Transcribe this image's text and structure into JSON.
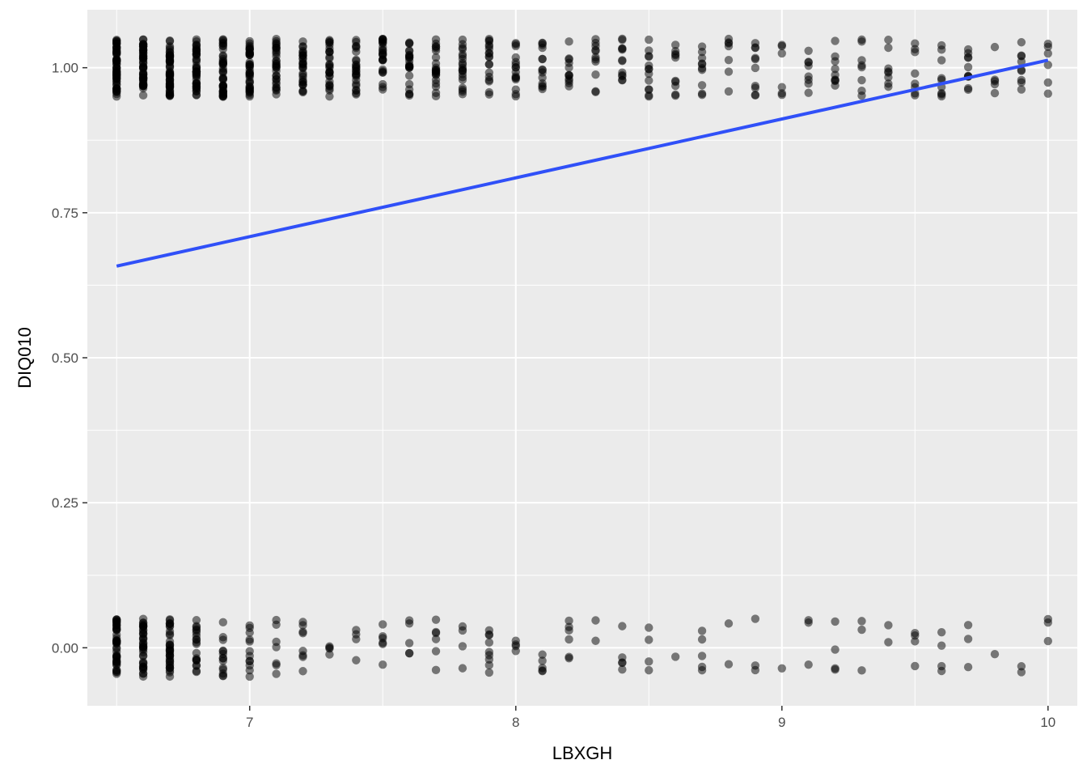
{
  "chart_data": {
    "type": "scatter",
    "title": "",
    "xlabel": "LBXGH",
    "ylabel": "DIQ010",
    "xlim": [
      6.39,
      10.11
    ],
    "ylim": [
      -0.1,
      1.1
    ],
    "x_ticks": [
      7,
      8,
      9,
      10
    ],
    "x_tick_labels": [
      "7",
      "8",
      "9",
      "10"
    ],
    "y_ticks": [
      0.0,
      0.25,
      0.5,
      0.75,
      1.0
    ],
    "y_tick_labels": [
      "0.00",
      "0.25",
      "0.50",
      "0.75",
      "1.00"
    ],
    "grid": true,
    "legend": "none",
    "colors": {
      "panel_background": "#ebebeb",
      "grid": "#ffffff",
      "points": "#000000",
      "fit_line": "#3050f8"
    },
    "point_opacity": 0.5,
    "jitter_height": 0.05,
    "x_values": [
      6.5,
      6.6,
      6.7,
      6.8,
      6.9,
      7.0,
      7.1,
      7.2,
      7.3,
      7.4,
      7.5,
      7.6,
      7.7,
      7.8,
      7.9,
      8.0,
      8.1,
      8.2,
      8.3,
      8.4,
      8.5,
      8.6,
      8.7,
      8.8,
      8.9,
      9.0,
      9.1,
      9.2,
      9.3,
      9.4,
      9.5,
      9.6,
      9.7,
      9.8,
      9.9,
      10.0
    ],
    "group_y1_counts": [
      60,
      55,
      55,
      45,
      42,
      42,
      32,
      30,
      28,
      26,
      26,
      24,
      22,
      20,
      18,
      16,
      14,
      12,
      11,
      12,
      13,
      10,
      10,
      7,
      10,
      6,
      8,
      9,
      8,
      8,
      8,
      9,
      10,
      5,
      9,
      6
    ],
    "group_y0_counts": [
      45,
      38,
      35,
      20,
      14,
      12,
      7,
      8,
      4,
      4,
      6,
      5,
      6,
      4,
      9,
      4,
      5,
      6,
      2,
      5,
      4,
      1,
      5,
      2,
      3,
      1,
      3,
      4,
      3,
      2,
      4,
      4,
      3,
      1,
      2,
      3
    ],
    "series": [
      {
        "type": "line",
        "x": [
          6.5,
          10.0
        ],
        "y": [
          0.658,
          1.013
        ]
      }
    ]
  }
}
